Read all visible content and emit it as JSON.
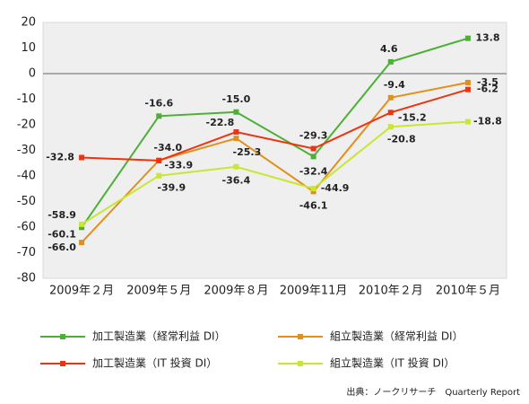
{
  "chart_data": {
    "type": "line",
    "categories": [
      "2009年２月",
      "2009年５月",
      "2009年８月",
      "2009年11月",
      "2010年２月",
      "2010年５月"
    ],
    "series": [
      {
        "name": "加工製造業（経常利益 DI）",
        "color": "#4cb034",
        "values": [
          -60.1,
          -16.6,
          -15.0,
          -32.4,
          4.6,
          13.8
        ],
        "value_labels": [
          "-60.1",
          "-16.6",
          "-15.0",
          "-32.4",
          "4.6",
          "13.8"
        ]
      },
      {
        "name": "組立製造業（経常利益 DI）",
        "color": "#e0901c",
        "values": [
          -66.0,
          -33.9,
          -25.3,
          -46.1,
          -9.4,
          -3.5
        ],
        "value_labels": [
          "-66.0",
          "-33.9",
          "-25.3",
          "-46.1",
          "-9.4",
          "-3.5"
        ]
      },
      {
        "name": "加工製造業（IT 投資 DI）",
        "color": "#ee3311",
        "values": [
          -32.8,
          -34.0,
          -22.8,
          -29.3,
          -15.2,
          -6.2
        ],
        "value_labels": [
          "-32.8",
          "-34.0",
          "-22.8",
          "-29.3",
          "-15.2",
          "-6.2"
        ]
      },
      {
        "name": "組立製造業（IT 投資 DI）",
        "color": "#c8e632",
        "values": [
          -58.9,
          -39.9,
          -36.4,
          -44.9,
          -20.8,
          -18.8
        ],
        "value_labels": [
          "-58.9",
          "-39.9",
          "-36.4",
          "-44.9",
          "-20.8",
          "-18.8"
        ]
      }
    ],
    "ylim": [
      -80,
      20
    ],
    "yticks": [
      20,
      10,
      0,
      -10,
      -20,
      -30,
      -40,
      -50,
      -60,
      -70,
      -80
    ],
    "source": "出典：ノークリサーチ　Quarterly Report"
  }
}
